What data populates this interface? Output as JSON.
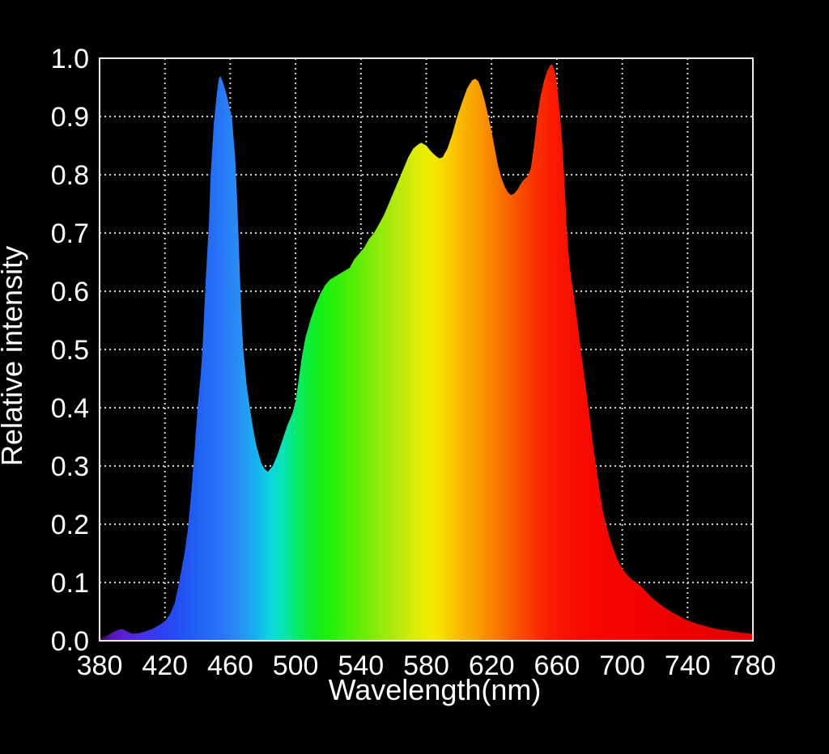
{
  "chart_data": {
    "type": "area",
    "title": "",
    "xlabel": "Wavelength(nm)",
    "ylabel": "Relative intensity",
    "xlim": [
      380,
      780
    ],
    "ylim": [
      0.0,
      1.0
    ],
    "x_ticks": [
      380,
      420,
      460,
      500,
      540,
      580,
      620,
      660,
      700,
      740,
      780
    ],
    "y_ticks": [
      "0.0",
      "0.1",
      "0.2",
      "0.3",
      "0.4",
      "0.5",
      "0.6",
      "0.7",
      "0.8",
      "0.9",
      "1.0"
    ],
    "grid": "dotted",
    "legend": "none",
    "background_color": "#000000",
    "text_color": "#ffffff",
    "grid_color": "#d4d4d4",
    "border_color": "#ededed",
    "series": [
      {
        "name": "relative-spectral-intensity",
        "fill": "spectral-wavelength-gradient",
        "points": [
          [
            380,
            0.004
          ],
          [
            383,
            0.007
          ],
          [
            386,
            0.011
          ],
          [
            389,
            0.016
          ],
          [
            392,
            0.019
          ],
          [
            394,
            0.02
          ],
          [
            397,
            0.016
          ],
          [
            400,
            0.012
          ],
          [
            404,
            0.013
          ],
          [
            408,
            0.016
          ],
          [
            412,
            0.02
          ],
          [
            416,
            0.026
          ],
          [
            420,
            0.033
          ],
          [
            423,
            0.045
          ],
          [
            426,
            0.065
          ],
          [
            428,
            0.09
          ],
          [
            430,
            0.12
          ],
          [
            432,
            0.15
          ],
          [
            434,
            0.19
          ],
          [
            436,
            0.25
          ],
          [
            438,
            0.32
          ],
          [
            440,
            0.4
          ],
          [
            442,
            0.46
          ],
          [
            443,
            0.5
          ],
          [
            445,
            0.62
          ],
          [
            447,
            0.72
          ],
          [
            448,
            0.8
          ],
          [
            450,
            0.89
          ],
          [
            452,
            0.945
          ],
          [
            453,
            0.965
          ],
          [
            454,
            0.97
          ],
          [
            456,
            0.955
          ],
          [
            458,
            0.935
          ],
          [
            460,
            0.91
          ],
          [
            461,
            0.9
          ],
          [
            462,
            0.865
          ],
          [
            463,
            0.83
          ],
          [
            464,
            0.77
          ],
          [
            465,
            0.7
          ],
          [
            466,
            0.62
          ],
          [
            467,
            0.55
          ],
          [
            468,
            0.5
          ],
          [
            470,
            0.44
          ],
          [
            472,
            0.4
          ],
          [
            474,
            0.365
          ],
          [
            476,
            0.335
          ],
          [
            479,
            0.305
          ],
          [
            481,
            0.295
          ],
          [
            483,
            0.29
          ],
          [
            486,
            0.3
          ],
          [
            489,
            0.32
          ],
          [
            492,
            0.345
          ],
          [
            495,
            0.37
          ],
          [
            498,
            0.39
          ],
          [
            500,
            0.41
          ],
          [
            502,
            0.45
          ],
          [
            504,
            0.49
          ],
          [
            506,
            0.52
          ],
          [
            509,
            0.55
          ],
          [
            512,
            0.575
          ],
          [
            515,
            0.595
          ],
          [
            518,
            0.61
          ],
          [
            521,
            0.62
          ],
          [
            524,
            0.625
          ],
          [
            527,
            0.63
          ],
          [
            530,
            0.635
          ],
          [
            533,
            0.64
          ],
          [
            536,
            0.655
          ],
          [
            539,
            0.665
          ],
          [
            542,
            0.675
          ],
          [
            545,
            0.69
          ],
          [
            548,
            0.7
          ],
          [
            551,
            0.715
          ],
          [
            554,
            0.73
          ],
          [
            557,
            0.75
          ],
          [
            560,
            0.77
          ],
          [
            563,
            0.79
          ],
          [
            566,
            0.81
          ],
          [
            569,
            0.83
          ],
          [
            572,
            0.845
          ],
          [
            575,
            0.852
          ],
          [
            577,
            0.855
          ],
          [
            580,
            0.85
          ],
          [
            583,
            0.84
          ],
          [
            586,
            0.832
          ],
          [
            588,
            0.828
          ],
          [
            590,
            0.83
          ],
          [
            593,
            0.845
          ],
          [
            596,
            0.87
          ],
          [
            599,
            0.9
          ],
          [
            602,
            0.925
          ],
          [
            605,
            0.948
          ],
          [
            608,
            0.962
          ],
          [
            610,
            0.965
          ],
          [
            612,
            0.96
          ],
          [
            614,
            0.945
          ],
          [
            616,
            0.925
          ],
          [
            618,
            0.9
          ],
          [
            620,
            0.875
          ],
          [
            622,
            0.845
          ],
          [
            624,
            0.815
          ],
          [
            626,
            0.795
          ],
          [
            628,
            0.78
          ],
          [
            630,
            0.77
          ],
          [
            632,
            0.765
          ],
          [
            634,
            0.768
          ],
          [
            636,
            0.775
          ],
          [
            638,
            0.785
          ],
          [
            640,
            0.792
          ],
          [
            642,
            0.797
          ],
          [
            644,
            0.81
          ],
          [
            646,
            0.85
          ],
          [
            648,
            0.9
          ],
          [
            650,
            0.935
          ],
          [
            652,
            0.96
          ],
          [
            654,
            0.978
          ],
          [
            656,
            0.988
          ],
          [
            657,
            0.99
          ],
          [
            659,
            0.975
          ],
          [
            660,
            0.955
          ],
          [
            661,
            0.93
          ],
          [
            662,
            0.9
          ],
          [
            663,
            0.865
          ],
          [
            664,
            0.82
          ],
          [
            665,
            0.77
          ],
          [
            666,
            0.71
          ],
          [
            667,
            0.67
          ],
          [
            668,
            0.64
          ],
          [
            670,
            0.6
          ],
          [
            672,
            0.56
          ],
          [
            674,
            0.515
          ],
          [
            676,
            0.47
          ],
          [
            678,
            0.43
          ],
          [
            680,
            0.385
          ],
          [
            682,
            0.34
          ],
          [
            684,
            0.3
          ],
          [
            686,
            0.26
          ],
          [
            688,
            0.225
          ],
          [
            690,
            0.2
          ],
          [
            692,
            0.18
          ],
          [
            694,
            0.162
          ],
          [
            696,
            0.147
          ],
          [
            698,
            0.134
          ],
          [
            700,
            0.124
          ],
          [
            703,
            0.113
          ],
          [
            706,
            0.105
          ],
          [
            710,
            0.097
          ],
          [
            713,
            0.089
          ],
          [
            716,
            0.08
          ],
          [
            719,
            0.072
          ],
          [
            722,
            0.065
          ],
          [
            725,
            0.059
          ],
          [
            728,
            0.053
          ],
          [
            731,
            0.048
          ],
          [
            735,
            0.042
          ],
          [
            739,
            0.036
          ],
          [
            743,
            0.032
          ],
          [
            747,
            0.028
          ],
          [
            751,
            0.025
          ],
          [
            755,
            0.022
          ],
          [
            760,
            0.019
          ],
          [
            765,
            0.017
          ],
          [
            770,
            0.015
          ],
          [
            775,
            0.013
          ],
          [
            780,
            0.012
          ]
        ]
      }
    ],
    "gradient_stops": [
      [
        380,
        "#30084e"
      ],
      [
        388,
        "#5c14b8"
      ],
      [
        395,
        "#5b1fd6"
      ],
      [
        405,
        "#4730e8"
      ],
      [
        415,
        "#303cf0"
      ],
      [
        428,
        "#234ef3"
      ],
      [
        442,
        "#2364f5"
      ],
      [
        455,
        "#2678f6"
      ],
      [
        465,
        "#2b8df5"
      ],
      [
        475,
        "#17aef2"
      ],
      [
        484,
        "#0cd4e2"
      ],
      [
        492,
        "#07e4b6"
      ],
      [
        500,
        "#09e970"
      ],
      [
        509,
        "#0eed2e"
      ],
      [
        519,
        "#1bf00c"
      ],
      [
        533,
        "#4aee06"
      ],
      [
        548,
        "#85ea09"
      ],
      [
        562,
        "#b5e90e"
      ],
      [
        575,
        "#dfed06"
      ],
      [
        585,
        "#f5e800"
      ],
      [
        593,
        "#f8d200"
      ],
      [
        602,
        "#f9b400"
      ],
      [
        612,
        "#f99c00"
      ],
      [
        622,
        "#f97e00"
      ],
      [
        633,
        "#f95a00"
      ],
      [
        645,
        "#f93600"
      ],
      [
        657,
        "#f91a00"
      ],
      [
        672,
        "#f80c00"
      ],
      [
        700,
        "#f30400"
      ],
      [
        780,
        "#e40000"
      ]
    ]
  }
}
